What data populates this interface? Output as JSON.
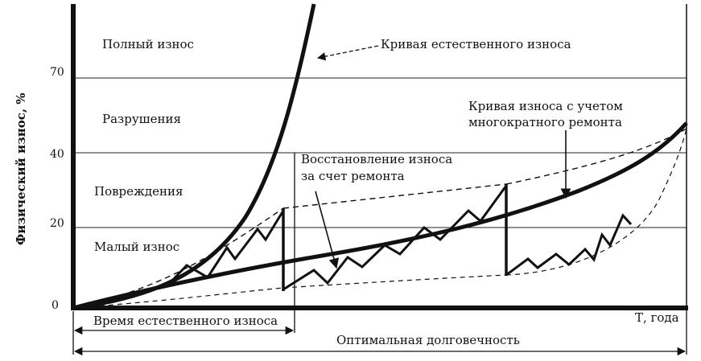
{
  "axes": {
    "y_label": "Физический износ, %",
    "x_label": "Т, года",
    "y_ticks": [
      "0",
      "20",
      "40",
      "70"
    ]
  },
  "zones": {
    "full": "Полный износ",
    "destruction": "Разрушения",
    "damage": "Повреждения",
    "minor": "Малый износ"
  },
  "annotations": {
    "natural_curve": "Кривая естественного износа",
    "repair_curve_line1": "Кривая износа с учетом",
    "repair_curve_line2": "многократного ремонта",
    "restoration_line1": "Восстановление износа",
    "restoration_line2": "за счет ремонта"
  },
  "dimensions": {
    "natural_time": "Время естественного износа",
    "optimal_life": "Оптимальная долговечность"
  },
  "colors": {
    "ink": "#111111",
    "background": "#ffffff"
  }
}
